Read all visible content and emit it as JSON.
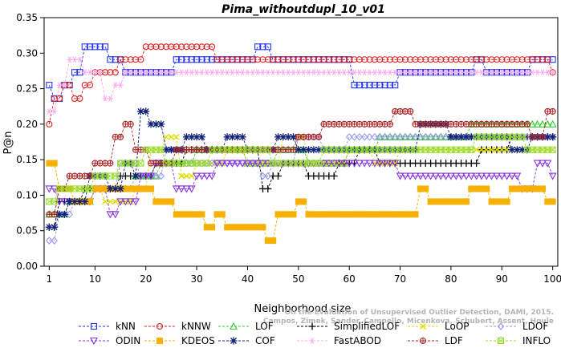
{
  "chart_data": {
    "type": "line",
    "title": "Pima_withoutdupl_10_v01",
    "xlabel": "Neighborhood size",
    "ylabel": "P@n",
    "xlim": [
      0,
      101
    ],
    "ylim": [
      0,
      0.35
    ],
    "xticks": [
      1,
      10,
      20,
      30,
      40,
      50,
      60,
      70,
      80,
      90,
      100
    ],
    "yticks": [
      "0.00",
      "0.05",
      "0.10",
      "0.15",
      "0.20",
      "0.25",
      "0.30",
      "0.35"
    ],
    "grid": false,
    "legend_position": "bottom",
    "citation": [
      "Campos, Zimek, Sander, Campello, Micenkova, Schubert, Assent, Houle",
      "On the Evaluation of Unsupervised Outlier Detection, DAMI, 2015."
    ],
    "series": [
      {
        "name": "kNN",
        "color": "#2233ee",
        "marker": "square",
        "points": [
          [
            1,
            0.255
          ],
          [
            2,
            0.236
          ],
          [
            4,
            0.255
          ],
          [
            6,
            0.273
          ],
          [
            8,
            0.309
          ],
          [
            13,
            0.291
          ],
          [
            16,
            0.273
          ],
          [
            26,
            0.291
          ],
          [
            36,
            0.291
          ],
          [
            42,
            0.309
          ],
          [
            45,
            0.291
          ],
          [
            61,
            0.255
          ],
          [
            70,
            0.273
          ],
          [
            85,
            0.291
          ],
          [
            87,
            0.273
          ],
          [
            96,
            0.291
          ],
          [
            100,
            0.291
          ]
        ]
      },
      {
        "name": "kNNW",
        "color": "#dd2222",
        "marker": "circle",
        "points": [
          [
            1,
            0.2
          ],
          [
            2,
            0.236
          ],
          [
            4,
            0.255
          ],
          [
            6,
            0.236
          ],
          [
            8,
            0.255
          ],
          [
            10,
            0.273
          ],
          [
            15,
            0.291
          ],
          [
            20,
            0.309
          ],
          [
            33,
            0.309
          ],
          [
            34,
            0.291
          ],
          [
            100,
            0.273
          ]
        ]
      },
      {
        "name": "LOF",
        "color": "#33cc33",
        "marker": "triangle-up",
        "points": [
          [
            1,
            0.073
          ],
          [
            5,
            0.091
          ],
          [
            10,
            0.109
          ],
          [
            18,
            0.127
          ],
          [
            23,
            0.145
          ],
          [
            30,
            0.164
          ],
          [
            35,
            0.164
          ],
          [
            40,
            0.145
          ],
          [
            46,
            0.164
          ],
          [
            52,
            0.145
          ],
          [
            60,
            0.164
          ],
          [
            66,
            0.182
          ],
          [
            76,
            0.182
          ],
          [
            84,
            0.2
          ],
          [
            100,
            0.2
          ]
        ]
      },
      {
        "name": "SimplifiedLOF",
        "color": "#000000",
        "marker": "plus",
        "points": [
          [
            1,
            0.055
          ],
          [
            3,
            0.091
          ],
          [
            8,
            0.109
          ],
          [
            15,
            0.127
          ],
          [
            22,
            0.145
          ],
          [
            28,
            0.164
          ],
          [
            40,
            0.164
          ],
          [
            43,
            0.109
          ],
          [
            45,
            0.127
          ],
          [
            47,
            0.145
          ],
          [
            52,
            0.127
          ],
          [
            55,
            0.127
          ],
          [
            58,
            0.145
          ],
          [
            62,
            0.164
          ],
          [
            66,
            0.145
          ],
          [
            76,
            0.145
          ],
          [
            86,
            0.164
          ],
          [
            90,
            0.164
          ],
          [
            92,
            0.182
          ],
          [
            100,
            0.182
          ]
        ]
      },
      {
        "name": "LoOP",
        "color": "#dddd00",
        "marker": "x",
        "points": [
          [
            1,
            0.145
          ],
          [
            3,
            0.109
          ],
          [
            7,
            0.109
          ],
          [
            12,
            0.091
          ],
          [
            18,
            0.109
          ],
          [
            21,
            0.164
          ],
          [
            24,
            0.182
          ],
          [
            27,
            0.127
          ],
          [
            30,
            0.145
          ],
          [
            36,
            0.164
          ],
          [
            40,
            0.145
          ],
          [
            47,
            0.182
          ],
          [
            52,
            0.145
          ],
          [
            56,
            0.145
          ],
          [
            60,
            0.164
          ],
          [
            65,
            0.145
          ],
          [
            70,
            0.164
          ],
          [
            85,
            0.164
          ],
          [
            100,
            0.164
          ]
        ]
      },
      {
        "name": "LDOF",
        "color": "#9999ee",
        "marker": "diamond",
        "points": [
          [
            1,
            0.036
          ],
          [
            3,
            0.073
          ],
          [
            6,
            0.091
          ],
          [
            10,
            0.109
          ],
          [
            15,
            0.145
          ],
          [
            19,
            0.127
          ],
          [
            24,
            0.164
          ],
          [
            28,
            0.145
          ],
          [
            35,
            0.145
          ],
          [
            40,
            0.145
          ],
          [
            43,
            0.127
          ],
          [
            45,
            0.145
          ],
          [
            50,
            0.182
          ],
          [
            55,
            0.164
          ],
          [
            60,
            0.182
          ],
          [
            70,
            0.182
          ],
          [
            80,
            0.182
          ],
          [
            90,
            0.182
          ],
          [
            100,
            0.182
          ]
        ]
      },
      {
        "name": "ODIN",
        "color": "#8833dd",
        "marker": "triangle-down",
        "points": [
          [
            1,
            0.109
          ],
          [
            3,
            0.091
          ],
          [
            6,
            0.091
          ],
          [
            10,
            0.109
          ],
          [
            13,
            0.073
          ],
          [
            15,
            0.091
          ],
          [
            19,
            0.127
          ],
          [
            22,
            0.145
          ],
          [
            26,
            0.109
          ],
          [
            30,
            0.127
          ],
          [
            34,
            0.145
          ],
          [
            44,
            0.145
          ],
          [
            50,
            0.145
          ],
          [
            56,
            0.145
          ],
          [
            62,
            0.145
          ],
          [
            68,
            0.145
          ],
          [
            70,
            0.127
          ],
          [
            90,
            0.127
          ],
          [
            94,
            0.109
          ],
          [
            97,
            0.145
          ],
          [
            100,
            0.127
          ]
        ]
      },
      {
        "name": "KDEOS",
        "color": "#f5b000",
        "marker": "filled-square",
        "points": [
          [
            1,
            0.145
          ],
          [
            3,
            0.109
          ],
          [
            6,
            0.091
          ],
          [
            10,
            0.109
          ],
          [
            14,
            0.109
          ],
          [
            20,
            0.109
          ],
          [
            22,
            0.091
          ],
          [
            26,
            0.073
          ],
          [
            30,
            0.073
          ],
          [
            32,
            0.055
          ],
          [
            34,
            0.073
          ],
          [
            36,
            0.055
          ],
          [
            40,
            0.055
          ],
          [
            44,
            0.036
          ],
          [
            46,
            0.073
          ],
          [
            50,
            0.091
          ],
          [
            52,
            0.073
          ],
          [
            56,
            0.073
          ],
          [
            58,
            0.073
          ],
          [
            62,
            0.073
          ],
          [
            70,
            0.073
          ],
          [
            74,
            0.109
          ],
          [
            76,
            0.091
          ],
          [
            80,
            0.091
          ],
          [
            84,
            0.109
          ],
          [
            88,
            0.091
          ],
          [
            92,
            0.109
          ],
          [
            96,
            0.109
          ],
          [
            99,
            0.091
          ],
          [
            100,
            0.091
          ]
        ]
      },
      {
        "name": "COF",
        "color": "#112277",
        "marker": "star",
        "points": [
          [
            1,
            0.055
          ],
          [
            3,
            0.073
          ],
          [
            5,
            0.091
          ],
          [
            9,
            0.127
          ],
          [
            13,
            0.109
          ],
          [
            16,
            0.145
          ],
          [
            18,
            0.127
          ],
          [
            19,
            0.218
          ],
          [
            21,
            0.2
          ],
          [
            24,
            0.164
          ],
          [
            28,
            0.182
          ],
          [
            32,
            0.164
          ],
          [
            36,
            0.182
          ],
          [
            40,
            0.164
          ],
          [
            46,
            0.182
          ],
          [
            50,
            0.164
          ],
          [
            56,
            0.164
          ],
          [
            62,
            0.164
          ],
          [
            70,
            0.164
          ],
          [
            74,
            0.2
          ],
          [
            80,
            0.182
          ],
          [
            90,
            0.182
          ],
          [
            92,
            0.164
          ],
          [
            94,
            0.164
          ],
          [
            96,
            0.182
          ],
          [
            100,
            0.182
          ]
        ]
      },
      {
        "name": "FastABOD",
        "color": "#ffaaee",
        "marker": "hex-star",
        "points": [
          [
            1,
            0.218
          ],
          [
            3,
            0.255
          ],
          [
            5,
            0.291
          ],
          [
            8,
            0.273
          ],
          [
            12,
            0.236
          ],
          [
            14,
            0.255
          ],
          [
            16,
            0.273
          ],
          [
            20,
            0.273
          ],
          [
            30,
            0.273
          ],
          [
            40,
            0.273
          ],
          [
            50,
            0.273
          ],
          [
            60,
            0.273
          ],
          [
            70,
            0.273
          ],
          [
            80,
            0.273
          ],
          [
            90,
            0.273
          ],
          [
            100,
            0.273
          ]
        ]
      },
      {
        "name": "LDF",
        "color": "#aa2222",
        "marker": "circle-plus",
        "points": [
          [
            1,
            0.073
          ],
          [
            3,
            0.109
          ],
          [
            5,
            0.127
          ],
          [
            10,
            0.145
          ],
          [
            14,
            0.182
          ],
          [
            16,
            0.2
          ],
          [
            18,
            0.164
          ],
          [
            21,
            0.145
          ],
          [
            26,
            0.164
          ],
          [
            30,
            0.164
          ],
          [
            35,
            0.164
          ],
          [
            40,
            0.164
          ],
          [
            50,
            0.182
          ],
          [
            55,
            0.2
          ],
          [
            65,
            0.2
          ],
          [
            69,
            0.218
          ],
          [
            73,
            0.2
          ],
          [
            82,
            0.2
          ],
          [
            86,
            0.2
          ],
          [
            90,
            0.2
          ],
          [
            96,
            0.182
          ],
          [
            99,
            0.218
          ],
          [
            100,
            0.218
          ]
        ]
      },
      {
        "name": "INFLO",
        "color": "#99dd33",
        "marker": "square-x",
        "points": [
          [
            1,
            0.091
          ],
          [
            3,
            0.109
          ],
          [
            6,
            0.109
          ],
          [
            10,
            0.127
          ],
          [
            15,
            0.145
          ],
          [
            20,
            0.164
          ],
          [
            24,
            0.145
          ],
          [
            28,
            0.145
          ],
          [
            33,
            0.164
          ],
          [
            40,
            0.164
          ],
          [
            45,
            0.145
          ],
          [
            50,
            0.145
          ],
          [
            55,
            0.164
          ],
          [
            60,
            0.164
          ],
          [
            65,
            0.164
          ],
          [
            70,
            0.164
          ],
          [
            75,
            0.164
          ],
          [
            80,
            0.164
          ],
          [
            85,
            0.182
          ],
          [
            90,
            0.182
          ],
          [
            95,
            0.164
          ],
          [
            100,
            0.164
          ]
        ]
      }
    ]
  }
}
